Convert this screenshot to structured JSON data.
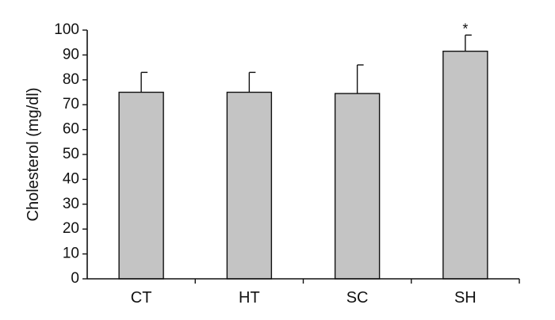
{
  "chart_data": {
    "type": "bar",
    "title": "",
    "xlabel": "",
    "ylabel": "Cholesterol (mg/dl)",
    "ylim": [
      0,
      100
    ],
    "yticks": [
      0,
      10,
      20,
      30,
      40,
      50,
      60,
      70,
      80,
      90,
      100
    ],
    "categories": [
      "CT",
      "HT",
      "SC",
      "SH"
    ],
    "values": [
      75,
      75,
      74.5,
      91.5
    ],
    "errors": [
      8,
      8,
      11.5,
      6.5
    ],
    "annotations": [
      "",
      "",
      "",
      "*"
    ],
    "grid": false,
    "colors": {
      "bar": "#c4c4c4",
      "stroke": "#111111"
    }
  }
}
